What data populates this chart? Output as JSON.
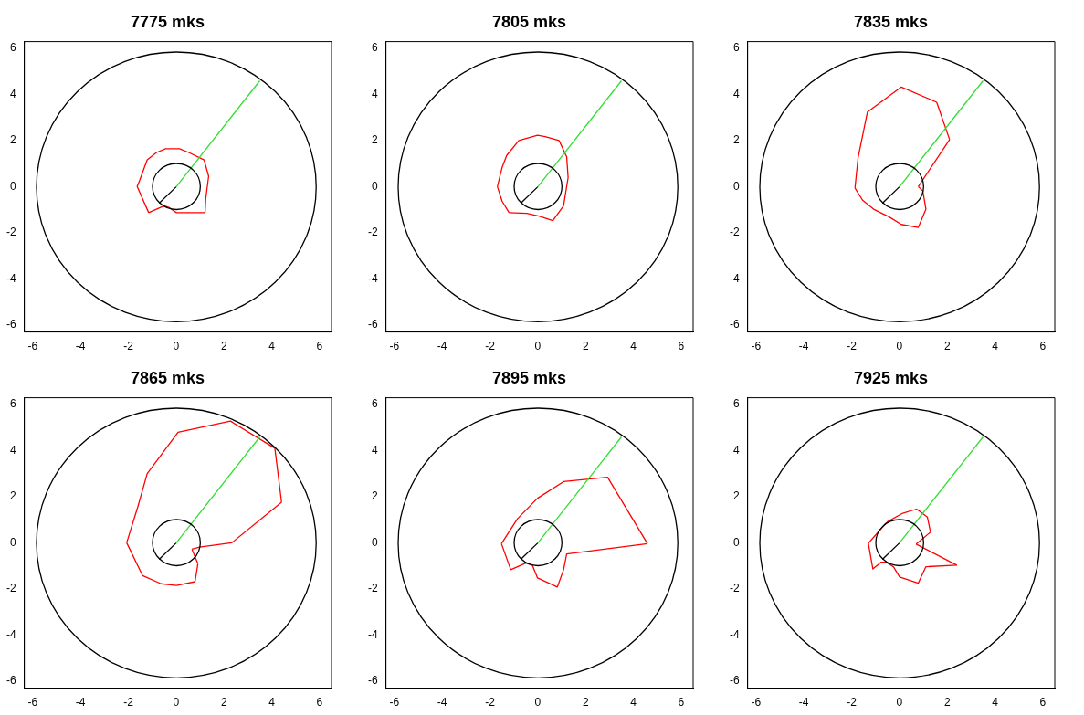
{
  "chart_data": [
    {
      "type": "line",
      "title": "7775 mks",
      "xlim": [
        -6.35,
        6.5
      ],
      "ylim": [
        -6.3,
        6.3
      ],
      "xticks": [
        -6,
        -4,
        -2,
        0,
        2,
        4,
        6
      ],
      "yticks": [
        -6,
        -4,
        -2,
        0,
        2,
        4,
        6
      ],
      "grid": false,
      "marker": "none",
      "line_style": "solid",
      "series": [
        {
          "color": "#000000",
          "x": [
            -0.71,
            0
          ],
          "values": [
            -0.71,
            0
          ]
        },
        {
          "color": "#33dd33",
          "x": [
            0,
            3.5
          ],
          "values": [
            0,
            4.6
          ]
        },
        {
          "color": "#ff0000",
          "x": [
            -1.15,
            -1.63,
            -1.53,
            -1.21,
            -0.82,
            -0.44,
            0.14,
            0.53,
            1.17,
            1.36,
            1.24,
            1.21
          ],
          "values": [
            -1.12,
            0.01,
            0.27,
            1.17,
            1.49,
            1.65,
            1.65,
            1.49,
            1.17,
            0.46,
            -0.5,
            -1.12
          ]
        },
        {
          "color": "#ff0000",
          "x": [
            -1.15,
            -0.5,
            -0.31,
            0.01,
            1.21
          ],
          "values": [
            -1.12,
            -0.82,
            -0.89,
            -1.12,
            -1.12
          ]
        }
      ]
    },
    {
      "type": "line",
      "title": "7805 mks",
      "xlim": [
        -6.35,
        6.5
      ],
      "ylim": [
        -6.3,
        6.3
      ],
      "xticks": [
        -6,
        -4,
        -2,
        0,
        2,
        4,
        6
      ],
      "yticks": [
        -6,
        -4,
        -2,
        0,
        2,
        4,
        6
      ],
      "grid": false,
      "marker": "none",
      "line_style": "solid",
      "series": [
        {
          "color": "#000000",
          "x": [
            -0.71,
            0
          ],
          "values": [
            -0.71,
            0
          ]
        },
        {
          "color": "#33dd33",
          "x": [
            0,
            3.5
          ],
          "values": [
            0,
            4.6
          ]
        },
        {
          "color": "#ff0000",
          "x": [
            -1.2,
            -1.49,
            -1.69,
            -1.49,
            -1.3,
            -0.79,
            -0.01,
            0.31,
            0.89,
            1.21,
            1.27,
            1.15,
            1.08,
            0.63
          ],
          "values": [
            -1.12,
            -0.63,
            0.01,
            0.85,
            1.36,
            2.01,
            2.24,
            2.18,
            2.01,
            1.3,
            0.4,
            -0.37,
            -0.82,
            -1.47
          ]
        },
        {
          "color": "#ff0000",
          "x": [
            -1.2,
            -0.46,
            0.05,
            0.63
          ],
          "values": [
            -1.12,
            -1.15,
            -1.27,
            -1.47
          ]
        }
      ]
    },
    {
      "type": "line",
      "title": "7835 mks",
      "xlim": [
        -6.35,
        6.5
      ],
      "ylim": [
        -6.3,
        6.3
      ],
      "xticks": [
        -6,
        -4,
        -2,
        0,
        2,
        4,
        6
      ],
      "yticks": [
        -6,
        -4,
        -2,
        0,
        2,
        4,
        6
      ],
      "grid": false,
      "marker": "none",
      "line_style": "solid",
      "series": [
        {
          "color": "#000000",
          "x": [
            -0.71,
            0
          ],
          "values": [
            -0.71,
            0
          ]
        },
        {
          "color": "#33dd33",
          "x": [
            0,
            3.5
          ],
          "values": [
            0,
            4.6
          ]
        },
        {
          "color": "#ff0000",
          "x": [
            -1.86,
            -1.73,
            -1.34,
            0.08,
            1.56,
            2.1
          ],
          "values": [
            -0.05,
            1.26,
            3.24,
            4.33,
            3.67,
            2.05
          ]
        },
        {
          "color": "#ff0000",
          "x": [
            0.79,
            2.1
          ],
          "values": [
            0.01,
            2.05
          ]
        },
        {
          "color": "#ff0000",
          "x": [
            0.79,
            0.98,
            1.11
          ],
          "values": [
            0.01,
            -0.18,
            -0.97
          ]
        },
        {
          "color": "#ff0000",
          "x": [
            -1.86,
            -1.54,
            -1.08,
            -0.44,
            0.08,
            0.79,
            1.11
          ],
          "values": [
            -0.05,
            -0.58,
            -0.97,
            -1.3,
            -1.63,
            -1.76,
            -0.97
          ]
        }
      ]
    },
    {
      "type": "line",
      "title": "7865 mks",
      "xlim": [
        -6.35,
        6.5
      ],
      "ylim": [
        -6.3,
        6.3
      ],
      "xticks": [
        -6,
        -4,
        -2,
        0,
        2,
        4,
        6
      ],
      "yticks": [
        -6,
        -4,
        -2,
        0,
        2,
        4,
        6
      ],
      "grid": false,
      "marker": "none",
      "line_style": "solid",
      "series": [
        {
          "color": "#000000",
          "x": [
            -0.71,
            0
          ],
          "values": [
            -0.71,
            0
          ]
        },
        {
          "color": "#33dd33",
          "x": [
            0,
            3.5
          ],
          "values": [
            0,
            4.6
          ]
        },
        {
          "color": "#ff0000",
          "x": [
            -2.07,
            -1.6,
            -1.21,
            0.08,
            2.27,
            4.13,
            4.41
          ],
          "values": [
            0.01,
            1.58,
            3.01,
            4.8,
            5.29,
            4.11,
            1.77
          ]
        },
        {
          "color": "#ff0000",
          "x": [
            0.66,
            0.98,
            2.33,
            4.41
          ],
          "values": [
            -0.27,
            -0.18,
            0.01,
            1.77
          ]
        },
        {
          "color": "#ff0000",
          "x": [
            0.66,
            0.91
          ],
          "values": [
            -0.27,
            -0.9
          ]
        },
        {
          "color": "#ff0000",
          "x": [
            -2.07,
            -1.4,
            -0.63,
            0.01,
            0.79,
            0.91
          ],
          "values": [
            0.01,
            -1.42,
            -1.77,
            -1.84,
            -1.68,
            -0.9
          ]
        }
      ]
    },
    {
      "type": "line",
      "title": "7895 mks",
      "xlim": [
        -6.35,
        6.5
      ],
      "ylim": [
        -6.3,
        6.3
      ],
      "xticks": [
        -6,
        -4,
        -2,
        0,
        2,
        4,
        6
      ],
      "yticks": [
        -6,
        -4,
        -2,
        0,
        2,
        4,
        6
      ],
      "grid": false,
      "marker": "none",
      "line_style": "solid",
      "series": [
        {
          "color": "#000000",
          "x": [
            -0.71,
            0
          ],
          "values": [
            -0.71,
            0
          ]
        },
        {
          "color": "#33dd33",
          "x": [
            0,
            3.5
          ],
          "values": [
            0,
            4.6
          ]
        },
        {
          "color": "#ff0000",
          "x": [
            -1.52,
            -0.85,
            -0.01,
            1.08,
            2.92,
            4.59
          ],
          "values": [
            -0.03,
            1.05,
            1.94,
            2.66,
            2.85,
            -0.03
          ]
        },
        {
          "color": "#ff0000",
          "x": [
            -1.52,
            -1.13,
            -0.5,
            -0.23,
            -0.01,
            0.82,
            1.08,
            1.21,
            4.59
          ],
          "values": [
            -0.03,
            -1.16,
            -0.87,
            -0.96,
            -1.52,
            -1.91,
            -1.16,
            -0.48,
            -0.03
          ]
        }
      ]
    },
    {
      "type": "line",
      "title": "7925 mks",
      "xlim": [
        -6.35,
        6.5
      ],
      "ylim": [
        -6.3,
        6.3
      ],
      "xticks": [
        -6,
        -4,
        -2,
        0,
        2,
        4,
        6
      ],
      "yticks": [
        -6,
        -4,
        -2,
        0,
        2,
        4,
        6
      ],
      "grid": false,
      "marker": "none",
      "line_style": "solid",
      "series": [
        {
          "color": "#000000",
          "x": [
            -0.71,
            0
          ],
          "values": [
            -0.71,
            0
          ]
        },
        {
          "color": "#33dd33",
          "x": [
            0,
            3.5
          ],
          "values": [
            0,
            4.6
          ]
        },
        {
          "color": "#ff0000",
          "x": [
            -1.3,
            -0.95,
            -0.5,
            0.14,
            0.72,
            1.17,
            1.3
          ],
          "values": [
            -0.01,
            0.4,
            0.92,
            1.29,
            1.47,
            1.12,
            0.47
          ]
        },
        {
          "color": "#ff0000",
          "x": [
            0.7,
            1.3
          ],
          "values": [
            -0.05,
            0.47
          ]
        },
        {
          "color": "#ff0000",
          "x": [
            0.7,
            2.4
          ],
          "values": [
            -0.05,
            -0.96
          ]
        },
        {
          "color": "#ff0000",
          "x": [
            -1.3,
            -1.11,
            -0.76,
            -0.57,
            -0.25,
            0.01,
            0.79,
            1.11,
            2.4
          ],
          "values": [
            -0.01,
            -1.13,
            -0.83,
            -0.83,
            -1.03,
            -1.48,
            -1.74,
            -1.03,
            -0.96
          ]
        }
      ]
    }
  ]
}
